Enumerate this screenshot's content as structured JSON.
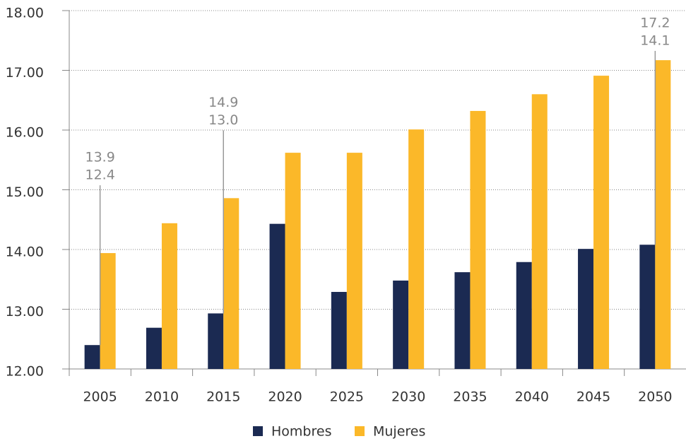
{
  "chart_data": {
    "type": "bar",
    "categories": [
      "2005",
      "2010",
      "2015",
      "2020",
      "2025",
      "2030",
      "2035",
      "2040",
      "2045",
      "2050"
    ],
    "series": [
      {
        "name": "Hombres",
        "color": "#1b2a52",
        "values": [
          12.4,
          12.69,
          12.93,
          14.43,
          13.29,
          13.48,
          13.62,
          13.79,
          14.01,
          14.08
        ]
      },
      {
        "name": "Mujeres",
        "color": "#fbb829",
        "values": [
          13.94,
          14.44,
          14.86,
          15.62,
          15.62,
          16.01,
          16.32,
          16.6,
          16.91,
          17.17
        ]
      }
    ],
    "ylim": [
      12,
      18
    ],
    "yticks": [
      {
        "value": 12,
        "label": "12.00"
      },
      {
        "value": 13,
        "label": "13.00"
      },
      {
        "value": 14,
        "label": "14.00"
      },
      {
        "value": 15,
        "label": "15.00"
      },
      {
        "value": 16,
        "label": "16.00"
      },
      {
        "value": 17,
        "label": "17.00"
      },
      {
        "value": 18,
        "label": "18.00"
      }
    ],
    "grid": true,
    "legend": "bottom",
    "annotations": [
      {
        "category": "2005",
        "lines": [
          "13.9",
          "12.4"
        ]
      },
      {
        "category": "2015",
        "lines": [
          "14.9",
          "13.0"
        ]
      },
      {
        "category": "2050",
        "lines": [
          "17.2",
          "14.1"
        ]
      }
    ]
  }
}
